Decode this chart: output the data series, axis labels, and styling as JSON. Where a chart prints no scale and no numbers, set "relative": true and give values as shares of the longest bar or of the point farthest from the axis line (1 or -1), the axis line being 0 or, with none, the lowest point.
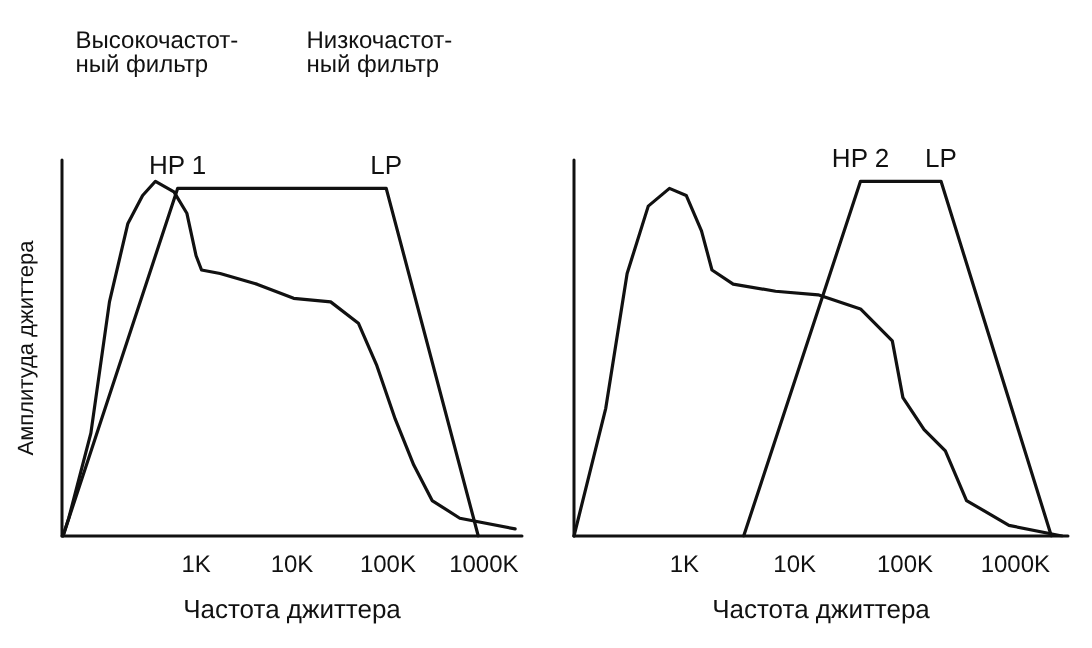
{
  "chart_data": [
    {
      "type": "line",
      "relative": true,
      "xlabel": "Частота джиттера",
      "ylabel": "Амплитуда джиттера",
      "xlim": [
        40,
        2500000
      ],
      "log": "x",
      "grid": false,
      "marker": "none",
      "line_style": "solid",
      "tick_labels": "x",
      "xticks": [
        {
          "value": 1000,
          "label": "1K"
        },
        {
          "value": 10000,
          "label": "10K"
        },
        {
          "value": 100000,
          "label": "100K"
        },
        {
          "value": 1000000,
          "label": "1000K"
        }
      ],
      "annotations": [
        "Высокочастот-\nный фильтр",
        "Низкочастот-\nный фильтр",
        {
          "text": "HP 1",
          "x": 642,
          "y": 0.98
        },
        {
          "text": "LP",
          "x": 96000,
          "y": 0.98
        }
      ],
      "series": [
        {
          "color": "#111111",
          "x": [
            41,
            47,
            80,
            125,
            194,
            277,
            377,
            588,
            801,
            1000,
            1140,
            1780,
            4310,
            10400,
            25300,
            49200,
            76700,
            119000,
            186000,
            289000,
            562000,
            2120000
          ],
          "values": [
            0,
            0.05,
            0.29,
            0.66,
            0.88,
            0.96,
            1,
            0.97,
            0.91,
            0.79,
            0.75,
            0.74,
            0.71,
            0.67,
            0.66,
            0.6,
            0.48,
            0.33,
            0.2,
            0.1,
            0.05,
            0.02
          ]
        },
        {
          "color": "#111111",
          "x": [
            41,
            642,
            96000,
            875000
          ],
          "values": [
            0,
            0.98,
            0.98,
            0
          ]
        }
      ]
    },
    {
      "type": "line",
      "relative": true,
      "xlabel": "Частота джиттера",
      "xlim": [
        100,
        3000000
      ],
      "log": "x",
      "grid": false,
      "marker": "none",
      "line_style": "solid",
      "tick_labels": "x",
      "xticks": [
        {
          "value": 1000,
          "label": "1K"
        },
        {
          "value": 10000,
          "label": "10K"
        },
        {
          "value": 100000,
          "label": "100K"
        },
        {
          "value": 1000000,
          "label": "1000K"
        }
      ],
      "annotations": [
        {
          "text": "HP 2",
          "x": 39500,
          "y": 1
        },
        {
          "text": "LP",
          "x": 212000,
          "y": 1
        }
      ],
      "series": [
        {
          "color": "#111111",
          "x": [
            100,
            194,
            303,
            471,
            733,
            1040,
            1430,
            1780,
            2770,
            6710,
            16300,
            39500,
            76700,
            95700,
            149000,
            232000,
            361000,
            875000,
            2650000
          ],
          "values": [
            0,
            0.36,
            0.74,
            0.93,
            0.98,
            0.96,
            0.86,
            0.75,
            0.71,
            0.69,
            0.68,
            0.64,
            0.55,
            0.39,
            0.3,
            0.24,
            0.1,
            0.03,
            0
          ]
        },
        {
          "color": "#111111",
          "x": [
            3450,
            39500,
            212000,
            2120000
          ],
          "values": [
            0,
            1,
            1,
            0
          ]
        }
      ]
    }
  ]
}
